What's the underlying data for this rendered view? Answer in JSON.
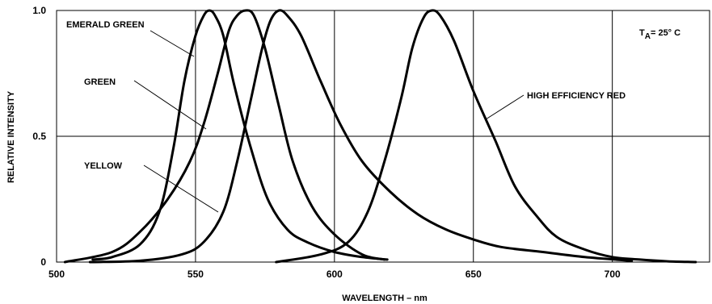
{
  "chart_data": {
    "type": "line",
    "xlabel": "WAVELENGTH – nm",
    "ylabel": "RELATIVE INTENSITY",
    "xlim": [
      500,
      735
    ],
    "ylim": [
      0,
      1.0
    ],
    "x_ticks": [
      "500",
      "550",
      "600",
      "650",
      "700"
    ],
    "y_ticks": [
      "0",
      "0.5",
      "1.0"
    ],
    "grid": true,
    "condition_label": {
      "main": "T",
      "sub": "A",
      "rest": "= 25° C"
    },
    "series": [
      {
        "name": "EMERALD GREEN",
        "points": [
          [
            513,
            0.01
          ],
          [
            520,
            0.02
          ],
          [
            530,
            0.07
          ],
          [
            537,
            0.2
          ],
          [
            542,
            0.45
          ],
          [
            546,
            0.72
          ],
          [
            550,
            0.9
          ],
          [
            553,
            0.98
          ],
          [
            555,
            1.0
          ],
          [
            557,
            0.98
          ],
          [
            560,
            0.9
          ],
          [
            564,
            0.7
          ],
          [
            570,
            0.45
          ],
          [
            576,
            0.25
          ],
          [
            583,
            0.13
          ],
          [
            590,
            0.08
          ],
          [
            600,
            0.04
          ],
          [
            610,
            0.02
          ],
          [
            619,
            0.01
          ]
        ]
      },
      {
        "name": "GREEN",
        "points": [
          [
            503,
            0.0
          ],
          [
            520,
            0.04
          ],
          [
            530,
            0.12
          ],
          [
            540,
            0.25
          ],
          [
            548,
            0.4
          ],
          [
            553,
            0.55
          ],
          [
            558,
            0.75
          ],
          [
            562,
            0.92
          ],
          [
            565,
            0.98
          ],
          [
            568,
            1.0
          ],
          [
            571,
            0.98
          ],
          [
            575,
            0.85
          ],
          [
            580,
            0.62
          ],
          [
            585,
            0.4
          ],
          [
            592,
            0.22
          ],
          [
            600,
            0.11
          ],
          [
            610,
            0.03
          ],
          [
            618,
            0.01
          ]
        ]
      },
      {
        "name": "YELLOW",
        "points": [
          [
            512,
            0.0
          ],
          [
            530,
            0.005
          ],
          [
            545,
            0.03
          ],
          [
            553,
            0.08
          ],
          [
            560,
            0.2
          ],
          [
            565,
            0.4
          ],
          [
            570,
            0.65
          ],
          [
            574,
            0.85
          ],
          [
            577,
            0.96
          ],
          [
            580,
            1.0
          ],
          [
            583,
            0.98
          ],
          [
            588,
            0.9
          ],
          [
            595,
            0.72
          ],
          [
            602,
            0.55
          ],
          [
            610,
            0.4
          ],
          [
            620,
            0.28
          ],
          [
            630,
            0.19
          ],
          [
            640,
            0.13
          ],
          [
            650,
            0.09
          ],
          [
            660,
            0.06
          ],
          [
            675,
            0.04
          ],
          [
            690,
            0.02
          ],
          [
            707,
            0.005
          ]
        ]
      },
      {
        "name": "HIGH EFFICIENCY RED",
        "points": [
          [
            579,
            0.0
          ],
          [
            595,
            0.03
          ],
          [
            605,
            0.08
          ],
          [
            612,
            0.2
          ],
          [
            618,
            0.4
          ],
          [
            624,
            0.65
          ],
          [
            628,
            0.85
          ],
          [
            632,
            0.97
          ],
          [
            635,
            1.0
          ],
          [
            638,
            0.98
          ],
          [
            643,
            0.88
          ],
          [
            650,
            0.68
          ],
          [
            658,
            0.48
          ],
          [
            665,
            0.3
          ],
          [
            673,
            0.18
          ],
          [
            680,
            0.1
          ],
          [
            690,
            0.05
          ],
          [
            700,
            0.02
          ],
          [
            710,
            0.01
          ],
          [
            720,
            0.003
          ],
          [
            730,
            0.0
          ]
        ]
      }
    ]
  }
}
